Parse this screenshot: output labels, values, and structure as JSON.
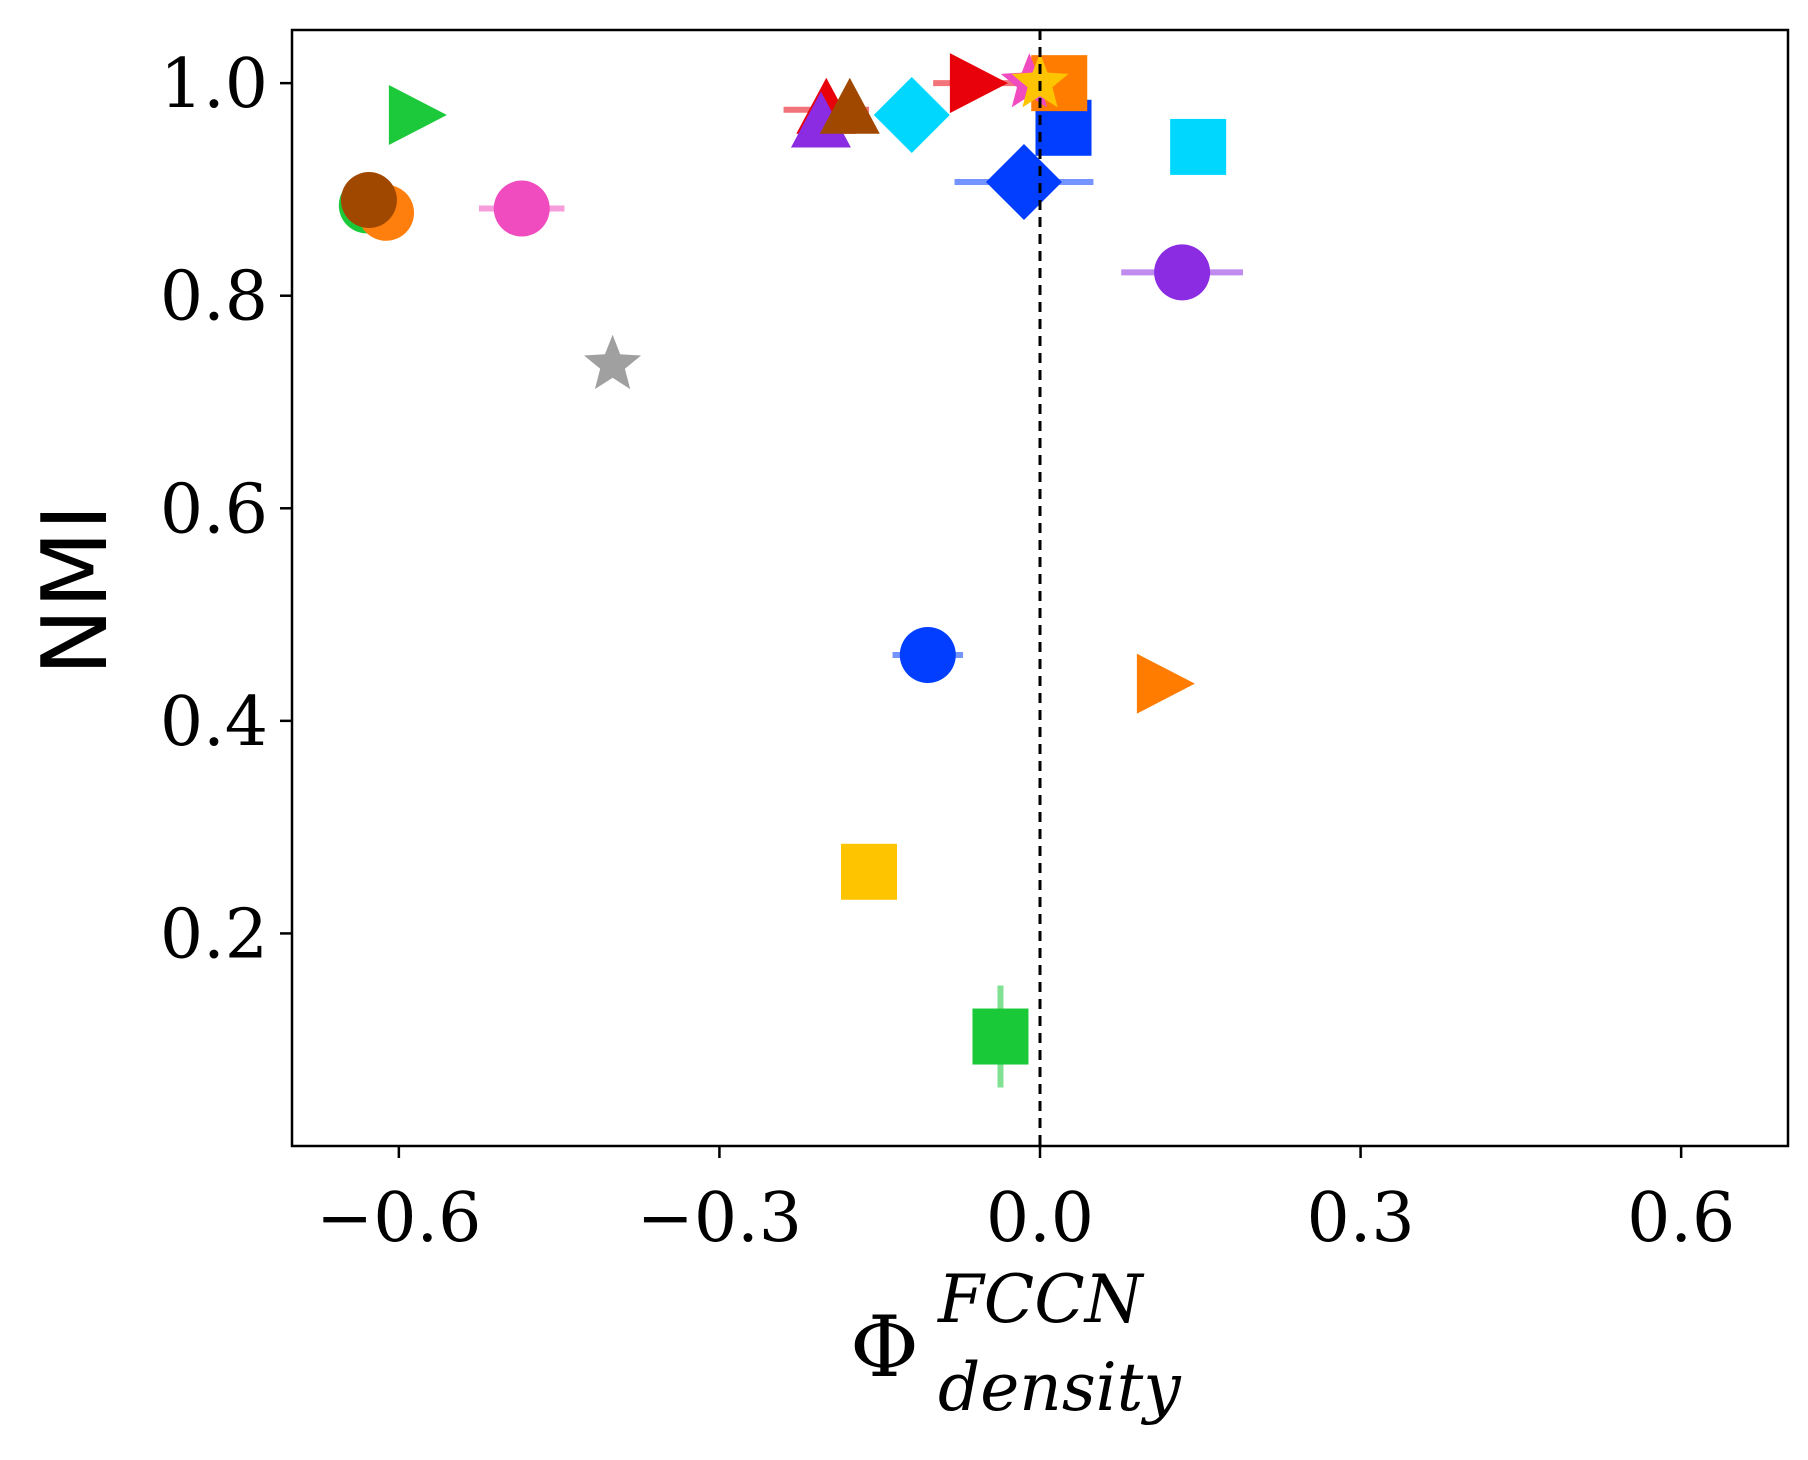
{
  "chart_data": {
    "type": "scatter",
    "title": "",
    "xlabel": {
      "symbol": "Φ",
      "superscript": "FCCN",
      "subscript": "density"
    },
    "ylabel": "NMI",
    "xlim": [
      -0.7,
      0.7
    ],
    "ylim": [
      0.0,
      1.05
    ],
    "xticks": [
      -0.6,
      -0.3,
      0.0,
      0.3,
      0.6
    ],
    "xtick_labels": [
      "−0.6",
      "−0.3",
      "0.0",
      "0.3",
      "0.6"
    ],
    "yticks": [
      0.2,
      0.4,
      0.6,
      0.8,
      1.0
    ],
    "ytick_labels": [
      "0.2",
      "0.4",
      "0.6",
      "0.8",
      "1.0"
    ],
    "reference_line": {
      "x": 0.0,
      "style": "dashed",
      "color": "#000000"
    },
    "grid": false,
    "points": [
      {
        "id": "green-triangle-right",
        "marker": "triangle-right",
        "color": "#1cc93a",
        "x": -0.585,
        "y": 0.97,
        "xerr": 0
      },
      {
        "id": "green-circle",
        "marker": "circle",
        "color": "#1cc93a",
        "x": -0.63,
        "y": 0.885,
        "xerr": 0
      },
      {
        "id": "orange-circle",
        "marker": "circle",
        "color": "#ff7f0e",
        "x": -0.612,
        "y": 0.878,
        "xerr": 0
      },
      {
        "id": "brown-circle",
        "marker": "circle",
        "color": "#a04800",
        "x": -0.628,
        "y": 0.89,
        "xerr": 0
      },
      {
        "id": "pink-circle",
        "marker": "circle",
        "color": "#f04cc0",
        "x": -0.485,
        "y": 0.882,
        "xerr": 0.04
      },
      {
        "id": "gray-star",
        "marker": "star",
        "color": "#a0a0a0",
        "x": -0.4,
        "y": 0.735,
        "xerr": 0
      },
      {
        "id": "red-triangle-up",
        "marker": "triangle-up",
        "color": "#e8000b",
        "x": -0.2,
        "y": 0.975,
        "xerr": 0.04
      },
      {
        "id": "purple-triangle-up",
        "marker": "triangle-up",
        "color": "#8b2be2",
        "x": -0.205,
        "y": 0.962,
        "xerr": 0.01
      },
      {
        "id": "brown-triangle-up",
        "marker": "triangle-up",
        "color": "#a04800",
        "x": -0.178,
        "y": 0.975,
        "xerr": 0
      },
      {
        "id": "cyan-diamond",
        "marker": "diamond",
        "color": "#00d7ff",
        "x": -0.12,
        "y": 0.97,
        "xerr": 0
      },
      {
        "id": "red-triangle-right",
        "marker": "triangle-right",
        "color": "#e8000b",
        "x": -0.06,
        "y": 1.0,
        "xerr": 0.04
      },
      {
        "id": "blue-square",
        "marker": "square",
        "color": "#023eff",
        "x": 0.022,
        "y": 0.958,
        "xerr": 0
      },
      {
        "id": "orange-square",
        "marker": "square",
        "color": "#ff7c00",
        "x": 0.018,
        "y": 1.0,
        "xerr": 0
      },
      {
        "id": "pink-star",
        "marker": "star",
        "color": "#f04cc0",
        "x": -0.01,
        "y": 1.0,
        "xerr": 0
      },
      {
        "id": "yellow-star",
        "marker": "star",
        "color": "#ffc400",
        "x": 0.0,
        "y": 1.0,
        "xerr": 0
      },
      {
        "id": "blue-diamond",
        "marker": "diamond",
        "color": "#023eff",
        "x": -0.015,
        "y": 0.907,
        "xerr": 0.065
      },
      {
        "id": "cyan-square",
        "marker": "square",
        "color": "#00d7ff",
        "x": 0.148,
        "y": 0.94,
        "xerr": 0.015
      },
      {
        "id": "purple-circle",
        "marker": "circle",
        "color": "#8b2be2",
        "x": 0.133,
        "y": 0.822,
        "xerr": 0.057
      },
      {
        "id": "blue-circle",
        "marker": "circle",
        "color": "#023eff",
        "x": -0.105,
        "y": 0.462,
        "xerr": 0.033
      },
      {
        "id": "orange-triangle-right",
        "marker": "triangle-right",
        "color": "#ff7c00",
        "x": 0.115,
        "y": 0.435,
        "xerr": 0
      },
      {
        "id": "yellow-square",
        "marker": "square",
        "color": "#ffc400",
        "x": -0.16,
        "y": 0.258,
        "xerr": 0
      },
      {
        "id": "green-square",
        "marker": "square",
        "color": "#1ac938",
        "x": -0.037,
        "y": 0.103,
        "xerr": 0,
        "yerr": 0.048
      }
    ]
  }
}
